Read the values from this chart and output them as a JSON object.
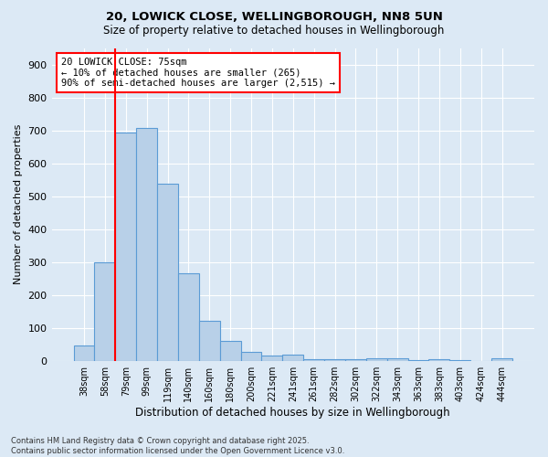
{
  "title1": "20, LOWICK CLOSE, WELLINGBOROUGH, NN8 5UN",
  "title2": "Size of property relative to detached houses in Wellingborough",
  "xlabel": "Distribution of detached houses by size in Wellingborough",
  "ylabel": "Number of detached properties",
  "categories": [
    "38sqm",
    "58sqm",
    "79sqm",
    "99sqm",
    "119sqm",
    "140sqm",
    "160sqm",
    "180sqm",
    "200sqm",
    "221sqm",
    "241sqm",
    "261sqm",
    "282sqm",
    "302sqm",
    "322sqm",
    "343sqm",
    "363sqm",
    "383sqm",
    "403sqm",
    "424sqm",
    "444sqm"
  ],
  "values": [
    47,
    300,
    693,
    706,
    538,
    265,
    122,
    59,
    28,
    15,
    20,
    5,
    5,
    5,
    8,
    8,
    3,
    5,
    3,
    0,
    8
  ],
  "bar_color": "#b8d0e8",
  "bar_edge_color": "#5b9bd5",
  "vline_color": "red",
  "vline_x_idx": 2,
  "annotation_text": "20 LOWICK CLOSE: 75sqm\n← 10% of detached houses are smaller (265)\n90% of semi-detached houses are larger (2,515) →",
  "annotation_box_color": "white",
  "annotation_box_edge": "red",
  "ylim": [
    0,
    950
  ],
  "yticks": [
    0,
    100,
    200,
    300,
    400,
    500,
    600,
    700,
    800,
    900
  ],
  "bg_color": "#dce9f5",
  "grid_color": "white",
  "footer": "Contains HM Land Registry data © Crown copyright and database right 2025.\nContains public sector information licensed under the Open Government Licence v3.0."
}
